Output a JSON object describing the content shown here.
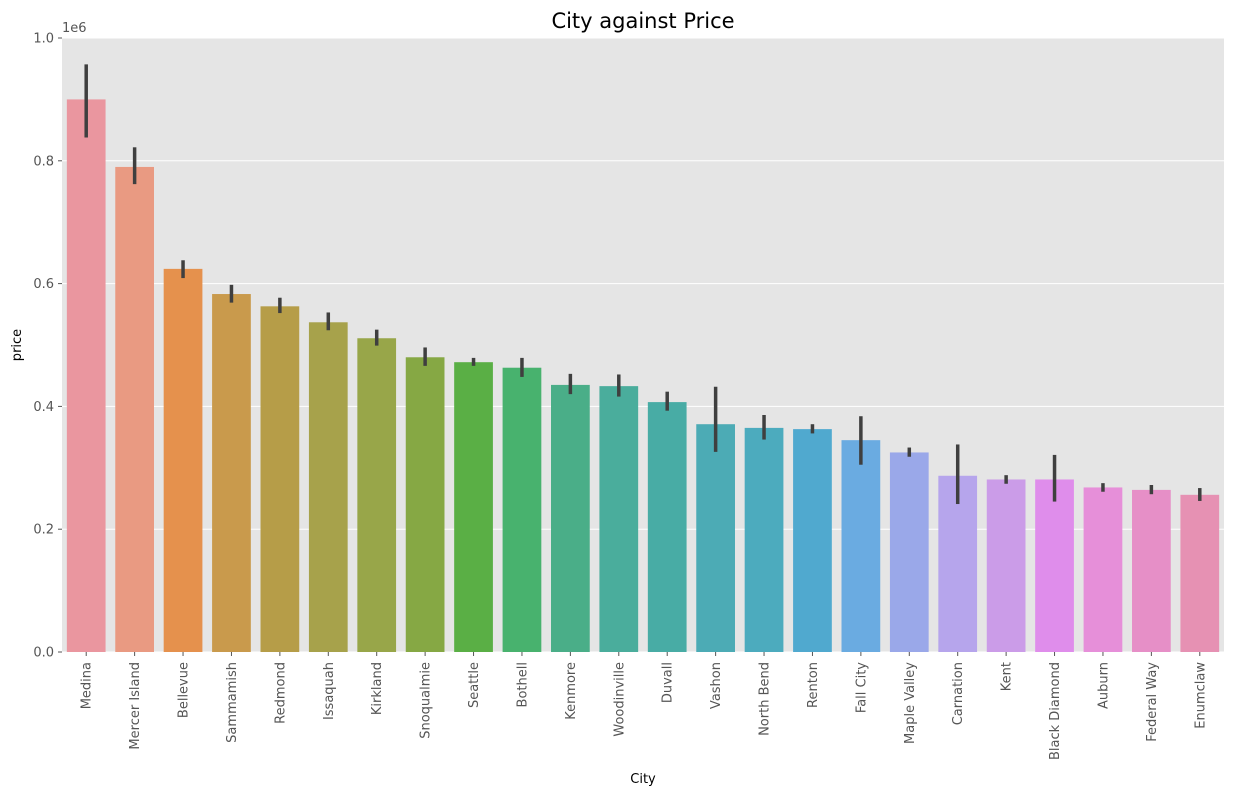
{
  "chart_data": {
    "type": "bar",
    "title": "City against Price",
    "xlabel": "City",
    "ylabel": "price",
    "y_offset_label": "1e6",
    "ylim": [
      0,
      1.0
    ],
    "y_ticks": [
      0.0,
      0.2,
      0.4,
      0.6,
      0.8,
      1.0
    ],
    "y_tick_labels": [
      "0.0",
      "0.2",
      "0.4",
      "0.6",
      "0.8",
      "1.0"
    ],
    "grid": true,
    "categories": [
      "Medina",
      "Mercer Island",
      "Bellevue",
      "Sammamish",
      "Redmond",
      "Issaquah",
      "Kirkland",
      "Snoqualmie",
      "Seattle",
      "Bothell",
      "Kenmore",
      "Woodinville",
      "Duvall",
      "Vashon",
      "North Bend",
      "Renton",
      "Fall City",
      "Maple Valley",
      "Carnation",
      "Kent",
      "Black Diamond",
      "Auburn",
      "Federal Way",
      "Enumclaw"
    ],
    "values": [
      0.9,
      0.79,
      0.624,
      0.583,
      0.563,
      0.537,
      0.511,
      0.48,
      0.472,
      0.463,
      0.435,
      0.433,
      0.407,
      0.371,
      0.365,
      0.363,
      0.345,
      0.325,
      0.287,
      0.281,
      0.281,
      0.268,
      0.264,
      0.256
    ],
    "error_low": [
      0.838,
      0.762,
      0.609,
      0.569,
      0.552,
      0.524,
      0.499,
      0.466,
      0.466,
      0.448,
      0.42,
      0.416,
      0.393,
      0.326,
      0.346,
      0.356,
      0.305,
      0.318,
      0.241,
      0.274,
      0.245,
      0.261,
      0.257,
      0.246
    ],
    "error_high": [
      0.957,
      0.822,
      0.638,
      0.598,
      0.577,
      0.553,
      0.525,
      0.496,
      0.479,
      0.479,
      0.453,
      0.452,
      0.424,
      0.432,
      0.386,
      0.371,
      0.384,
      0.333,
      0.338,
      0.288,
      0.321,
      0.275,
      0.272,
      0.267
    ],
    "colors": [
      "#ea969f",
      "#e99a82",
      "#e5914d",
      "#c99a4c",
      "#b69d48",
      "#a7a24b",
      "#98a649",
      "#86a844",
      "#5aaf45",
      "#48b26e",
      "#4aae88",
      "#4aad9c",
      "#48aca5",
      "#4cabb5",
      "#4cabbe",
      "#50a9cf",
      "#6aabe1",
      "#9aa8e9",
      "#b6a5ec",
      "#cb9ce8",
      "#df8deb",
      "#e68fd9",
      "#e68fc7",
      "#e691b3"
    ]
  }
}
